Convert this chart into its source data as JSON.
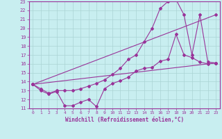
{
  "xlabel": "Windchill (Refroidissement éolien,°C)",
  "bg_color": "#c8eef0",
  "grid_color": "#aad4d4",
  "line_color": "#993399",
  "xlim": [
    -0.5,
    23.5
  ],
  "ylim": [
    11,
    23
  ],
  "xticks": [
    0,
    1,
    2,
    3,
    4,
    5,
    6,
    7,
    8,
    9,
    10,
    11,
    12,
    13,
    14,
    15,
    16,
    17,
    18,
    19,
    20,
    21,
    22,
    23
  ],
  "yticks": [
    11,
    12,
    13,
    14,
    15,
    16,
    17,
    18,
    19,
    20,
    21,
    22,
    23
  ],
  "line1_x": [
    0,
    1,
    2,
    3,
    4,
    5,
    6,
    7,
    8,
    9,
    10,
    11,
    12,
    13,
    14,
    15,
    16,
    17,
    18,
    19,
    20,
    21,
    22,
    23
  ],
  "line1_y": [
    13.7,
    13.0,
    12.6,
    12.9,
    11.3,
    11.3,
    11.7,
    12.0,
    11.2,
    13.2,
    13.8,
    14.1,
    14.5,
    15.2,
    15.5,
    15.6,
    16.3,
    16.5,
    19.3,
    17.0,
    16.7,
    16.2,
    16.0,
    16.1
  ],
  "line2_x": [
    0,
    23
  ],
  "line2_y": [
    13.7,
    16.1
  ],
  "line3_x": [
    0,
    23
  ],
  "line3_y": [
    13.7,
    21.5
  ],
  "line4_x": [
    0,
    1,
    2,
    3,
    4,
    5,
    6,
    7,
    8,
    9,
    10,
    11,
    12,
    13,
    14,
    15,
    16,
    17,
    18,
    19,
    20,
    21,
    22,
    23
  ],
  "line4_y": [
    13.7,
    13.2,
    12.7,
    13.0,
    13.0,
    13.0,
    13.2,
    13.5,
    13.8,
    14.2,
    14.8,
    15.5,
    16.5,
    17.0,
    18.5,
    20.0,
    22.2,
    23.0,
    23.2,
    21.5,
    17.0,
    21.5,
    16.2,
    16.1
  ]
}
